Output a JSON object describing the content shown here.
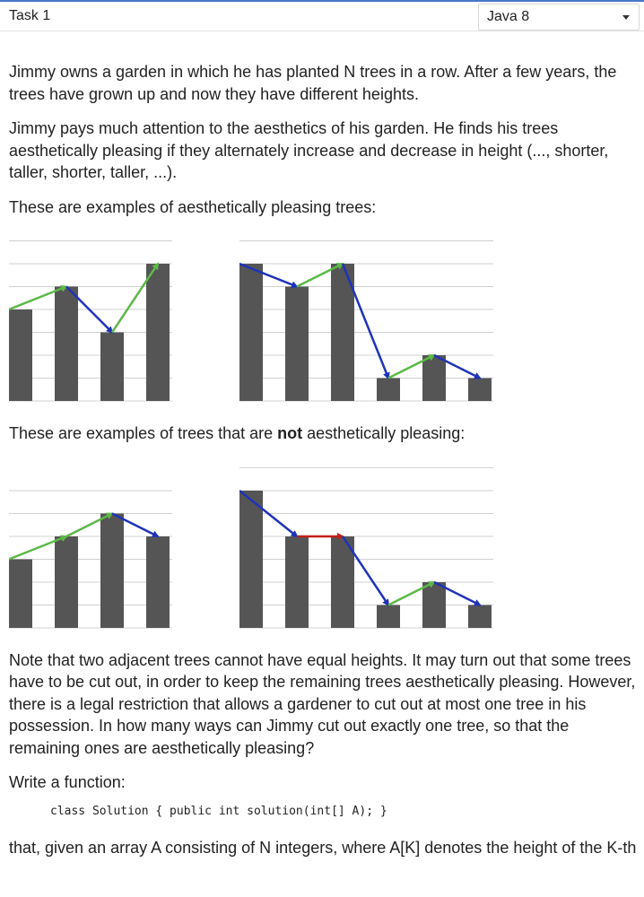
{
  "header": {
    "task_title": "Task 1",
    "language": "Java 8"
  },
  "content": {
    "p1": "Jimmy owns a garden in which he has planted N trees in a row. After a few years, the trees have grown up and now they have different heights.",
    "p2": "Jimmy pays much attention to the aesthetics of his garden. He finds his trees aesthetically pleasing if they alternately increase and decrease in height (..., shorter, taller, shorter, taller, ...).",
    "p3": "These are examples of aesthetically pleasing trees:",
    "p4_before": "These are examples of trees that are ",
    "p4_bold": "not",
    "p4_after": " aesthetically pleasing:",
    "p5": "Note that two adjacent trees cannot have equal heights. It may turn out that some trees have to be cut out, in order to keep the remaining trees aesthetically pleasing. However, there is a legal restriction that allows a gardener to cut out at most one tree in his possession. In how many ways can Jimmy cut out exactly one tree, so that the remaining ones are aesthetically pleasing?",
    "p6": "Write a function:",
    "code": "class Solution { public int solution(int[] A); }",
    "p7": "that, given an array A consisting of N integers, where A[K] denotes the height of the K-th"
  },
  "colors": {
    "bar": "#555555",
    "up": "#5cb947",
    "down": "#1f33b8",
    "equal": "#c0201a",
    "grid": "#d0d0d0"
  },
  "chart_data": [
    {
      "type": "bar",
      "group": "pleasing",
      "values": [
        4,
        5,
        3,
        6
      ],
      "ylim": [
        0,
        7
      ]
    },
    {
      "type": "bar",
      "group": "pleasing",
      "values": [
        6,
        5,
        6,
        1,
        2,
        1
      ],
      "ylim": [
        0,
        7
      ]
    },
    {
      "type": "bar",
      "group": "not-pleasing",
      "values": [
        3,
        4,
        5,
        4
      ],
      "ylim": [
        0,
        6
      ]
    },
    {
      "type": "bar",
      "group": "not-pleasing",
      "values": [
        6,
        4,
        4,
        1,
        2,
        1
      ],
      "ylim": [
        0,
        7
      ]
    }
  ]
}
